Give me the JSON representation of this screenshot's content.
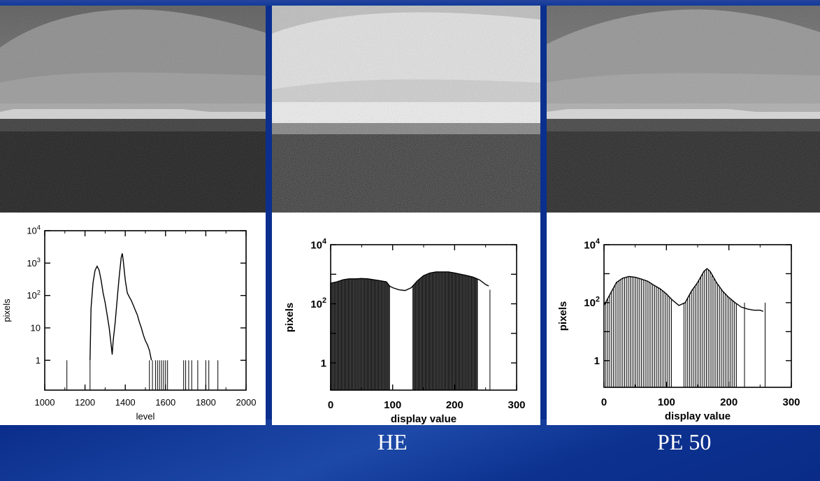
{
  "captions": {
    "middle": "HE",
    "right": "PE  50"
  },
  "colors": {
    "background": "#0b2f8f",
    "panel": "#ffffff",
    "bars": "#000000"
  },
  "chart_data": [
    {
      "type": "bar",
      "panel": "left",
      "xlabel": "level",
      "ylabel": "pixels",
      "xlim": [
        1000,
        2000
      ],
      "x_ticks": [
        "1000",
        "1200",
        "1400",
        "1600",
        "1800",
        "2000"
      ],
      "y_scale": "log",
      "ylim": [
        0.12,
        10000
      ],
      "y_ticks": [
        "1",
        "10",
        "10^2",
        "10^3",
        "10^4"
      ],
      "grid": false,
      "curve": [
        [
          1225,
          1
        ],
        [
          1230,
          40
        ],
        [
          1240,
          250
        ],
        [
          1250,
          600
        ],
        [
          1260,
          800
        ],
        [
          1270,
          600
        ],
        [
          1280,
          300
        ],
        [
          1290,
          120
        ],
        [
          1300,
          60
        ],
        [
          1310,
          25
        ],
        [
          1320,
          10
        ],
        [
          1330,
          3
        ],
        [
          1335,
          1.5
        ],
        [
          1340,
          4
        ],
        [
          1350,
          15
        ],
        [
          1360,
          80
        ],
        [
          1370,
          400
        ],
        [
          1380,
          1500
        ],
        [
          1385,
          2000
        ],
        [
          1390,
          1200
        ],
        [
          1400,
          300
        ],
        [
          1410,
          120
        ],
        [
          1420,
          90
        ],
        [
          1430,
          70
        ],
        [
          1440,
          50
        ],
        [
          1450,
          35
        ],
        [
          1460,
          25
        ],
        [
          1470,
          15
        ],
        [
          1480,
          10
        ],
        [
          1490,
          6
        ],
        [
          1500,
          4
        ],
        [
          1510,
          3
        ],
        [
          1520,
          2
        ],
        [
          1530,
          1
        ]
      ],
      "isolated_spikes": [
        1110,
        1225,
        1520,
        1535,
        1550,
        1560,
        1570,
        1580,
        1590,
        1600,
        1610,
        1690,
        1700,
        1715,
        1730,
        1760,
        1800,
        1815,
        1860
      ]
    },
    {
      "type": "bar",
      "panel": "middle",
      "xlabel": "display value",
      "ylabel": "pixels",
      "xlim": [
        0,
        300
      ],
      "x_ticks": [
        "0",
        "100",
        "200",
        "300"
      ],
      "y_scale": "log",
      "ylim": [
        0.12,
        10000
      ],
      "y_ticks": [
        "1",
        "10^2",
        "10^4"
      ],
      "grid": false,
      "curve": [
        [
          0,
          500
        ],
        [
          10,
          550
        ],
        [
          20,
          650
        ],
        [
          30,
          700
        ],
        [
          40,
          700
        ],
        [
          50,
          720
        ],
        [
          60,
          700
        ],
        [
          70,
          650
        ],
        [
          80,
          600
        ],
        [
          90,
          550
        ],
        [
          95,
          400
        ],
        [
          100,
          350
        ],
        [
          110,
          300
        ],
        [
          120,
          280
        ],
        [
          130,
          350
        ],
        [
          140,
          600
        ],
        [
          150,
          900
        ],
        [
          160,
          1100
        ],
        [
          170,
          1200
        ],
        [
          180,
          1200
        ],
        [
          190,
          1200
        ],
        [
          200,
          1100
        ],
        [
          210,
          1000
        ],
        [
          220,
          900
        ],
        [
          230,
          800
        ],
        [
          240,
          650
        ],
        [
          250,
          450
        ],
        [
          255,
          400
        ]
      ],
      "bar_ranges": [
        [
          0,
          95
        ],
        [
          133,
          238
        ]
      ],
      "isolated_spikes": [
        257
      ]
    },
    {
      "type": "bar",
      "panel": "right",
      "xlabel": "display value",
      "ylabel": "pixels",
      "xlim": [
        0,
        300
      ],
      "x_ticks": [
        "0",
        "100",
        "200",
        "300"
      ],
      "y_scale": "log",
      "ylim": [
        0.12,
        10000
      ],
      "y_ticks": [
        "1",
        "10^2",
        "10^4"
      ],
      "grid": false,
      "curve": [
        [
          0,
          80
        ],
        [
          10,
          200
        ],
        [
          20,
          500
        ],
        [
          30,
          700
        ],
        [
          40,
          800
        ],
        [
          50,
          750
        ],
        [
          60,
          650
        ],
        [
          70,
          550
        ],
        [
          80,
          400
        ],
        [
          90,
          300
        ],
        [
          100,
          200
        ],
        [
          110,
          120
        ],
        [
          120,
          80
        ],
        [
          130,
          100
        ],
        [
          140,
          250
        ],
        [
          150,
          500
        ],
        [
          160,
          1200
        ],
        [
          165,
          1500
        ],
        [
          170,
          1200
        ],
        [
          180,
          500
        ],
        [
          190,
          250
        ],
        [
          200,
          150
        ],
        [
          210,
          100
        ],
        [
          220,
          70
        ],
        [
          230,
          60
        ],
        [
          240,
          55
        ],
        [
          250,
          55
        ],
        [
          255,
          50
        ]
      ],
      "bar_ranges": [
        [
          0,
          108
        ],
        [
          128,
          212
        ]
      ],
      "isolated_spikes": [
        225,
        258
      ]
    }
  ]
}
